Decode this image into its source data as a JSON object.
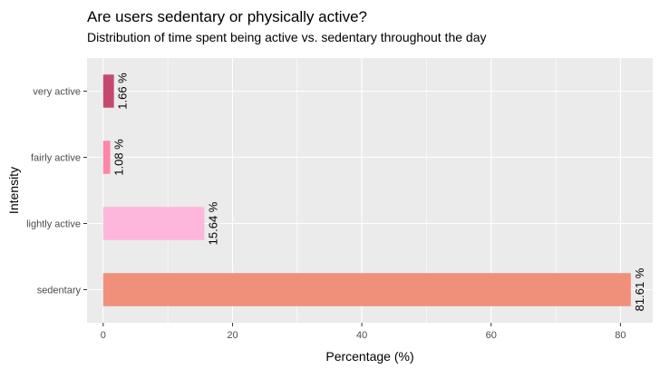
{
  "chart_data": {
    "type": "bar",
    "orientation": "horizontal",
    "title": "Are users sedentary or physically active?",
    "subtitle": "Distribution of time spent being active vs. sedentary throughout the day",
    "xlabel": "Percentage (%)",
    "ylabel": "Intensity",
    "categories": [
      "sedentary",
      "lightly active",
      "fairly active",
      "very active"
    ],
    "values": [
      81.61,
      15.64,
      1.08,
      1.66
    ],
    "data_labels": [
      "81.61 %",
      "15.64 %",
      "1.08 %",
      "1.66 %"
    ],
    "colors": [
      "#f0907b",
      "#ffb6dc",
      "#ff85a9",
      "#c4496f"
    ],
    "xlim": [
      -2.5,
      85
    ],
    "xticks": [
      0,
      20,
      40,
      60,
      80
    ],
    "grid": true,
    "panel_background": "#ebebeb",
    "grid_color": "#ffffff"
  }
}
